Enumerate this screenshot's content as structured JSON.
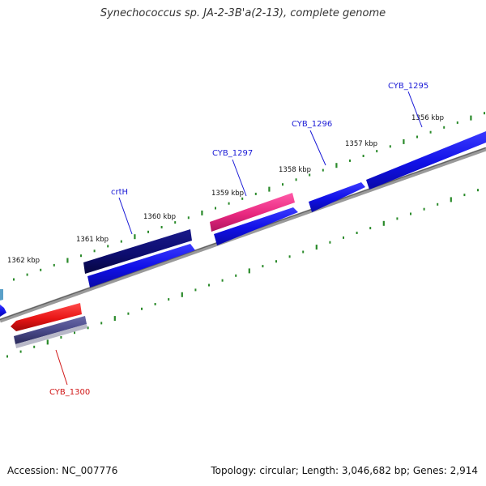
{
  "title": "Synechococcus sp. JA-2-3B'a(2-13), complete genome",
  "accession": "Accession: NC_007776",
  "summary": "Topology: circular; Length: 3,046,682 bp; Genes: 2,914",
  "colors": {
    "backbone": "#808080",
    "tick": "#2a8a2a",
    "gene_blue": "#1010e6",
    "gene_navy": "#0d0d70",
    "gene_pink": "#e8287f",
    "gene_red": "#e81515",
    "gene_slate": "#4a4a8a",
    "label_blue": "#1a1ad6",
    "label_red": "#d01515"
  },
  "tick_labels": [
    "1356 kbp",
    "1357 kbp",
    "1358 kbp",
    "1359 kbp",
    "1360 kbp",
    "1361 kbp",
    "1362 kbp"
  ],
  "gene_labels": [
    {
      "name": "CYB_1295",
      "color": "#1a1ad6"
    },
    {
      "name": "CYB_1296",
      "color": "#1a1ad6"
    },
    {
      "name": "CYB_1297",
      "color": "#1a1ad6"
    },
    {
      "name": "crtH",
      "color": "#1a1ad6"
    },
    {
      "name": "CYB_1300",
      "color": "#d01515"
    }
  ]
}
